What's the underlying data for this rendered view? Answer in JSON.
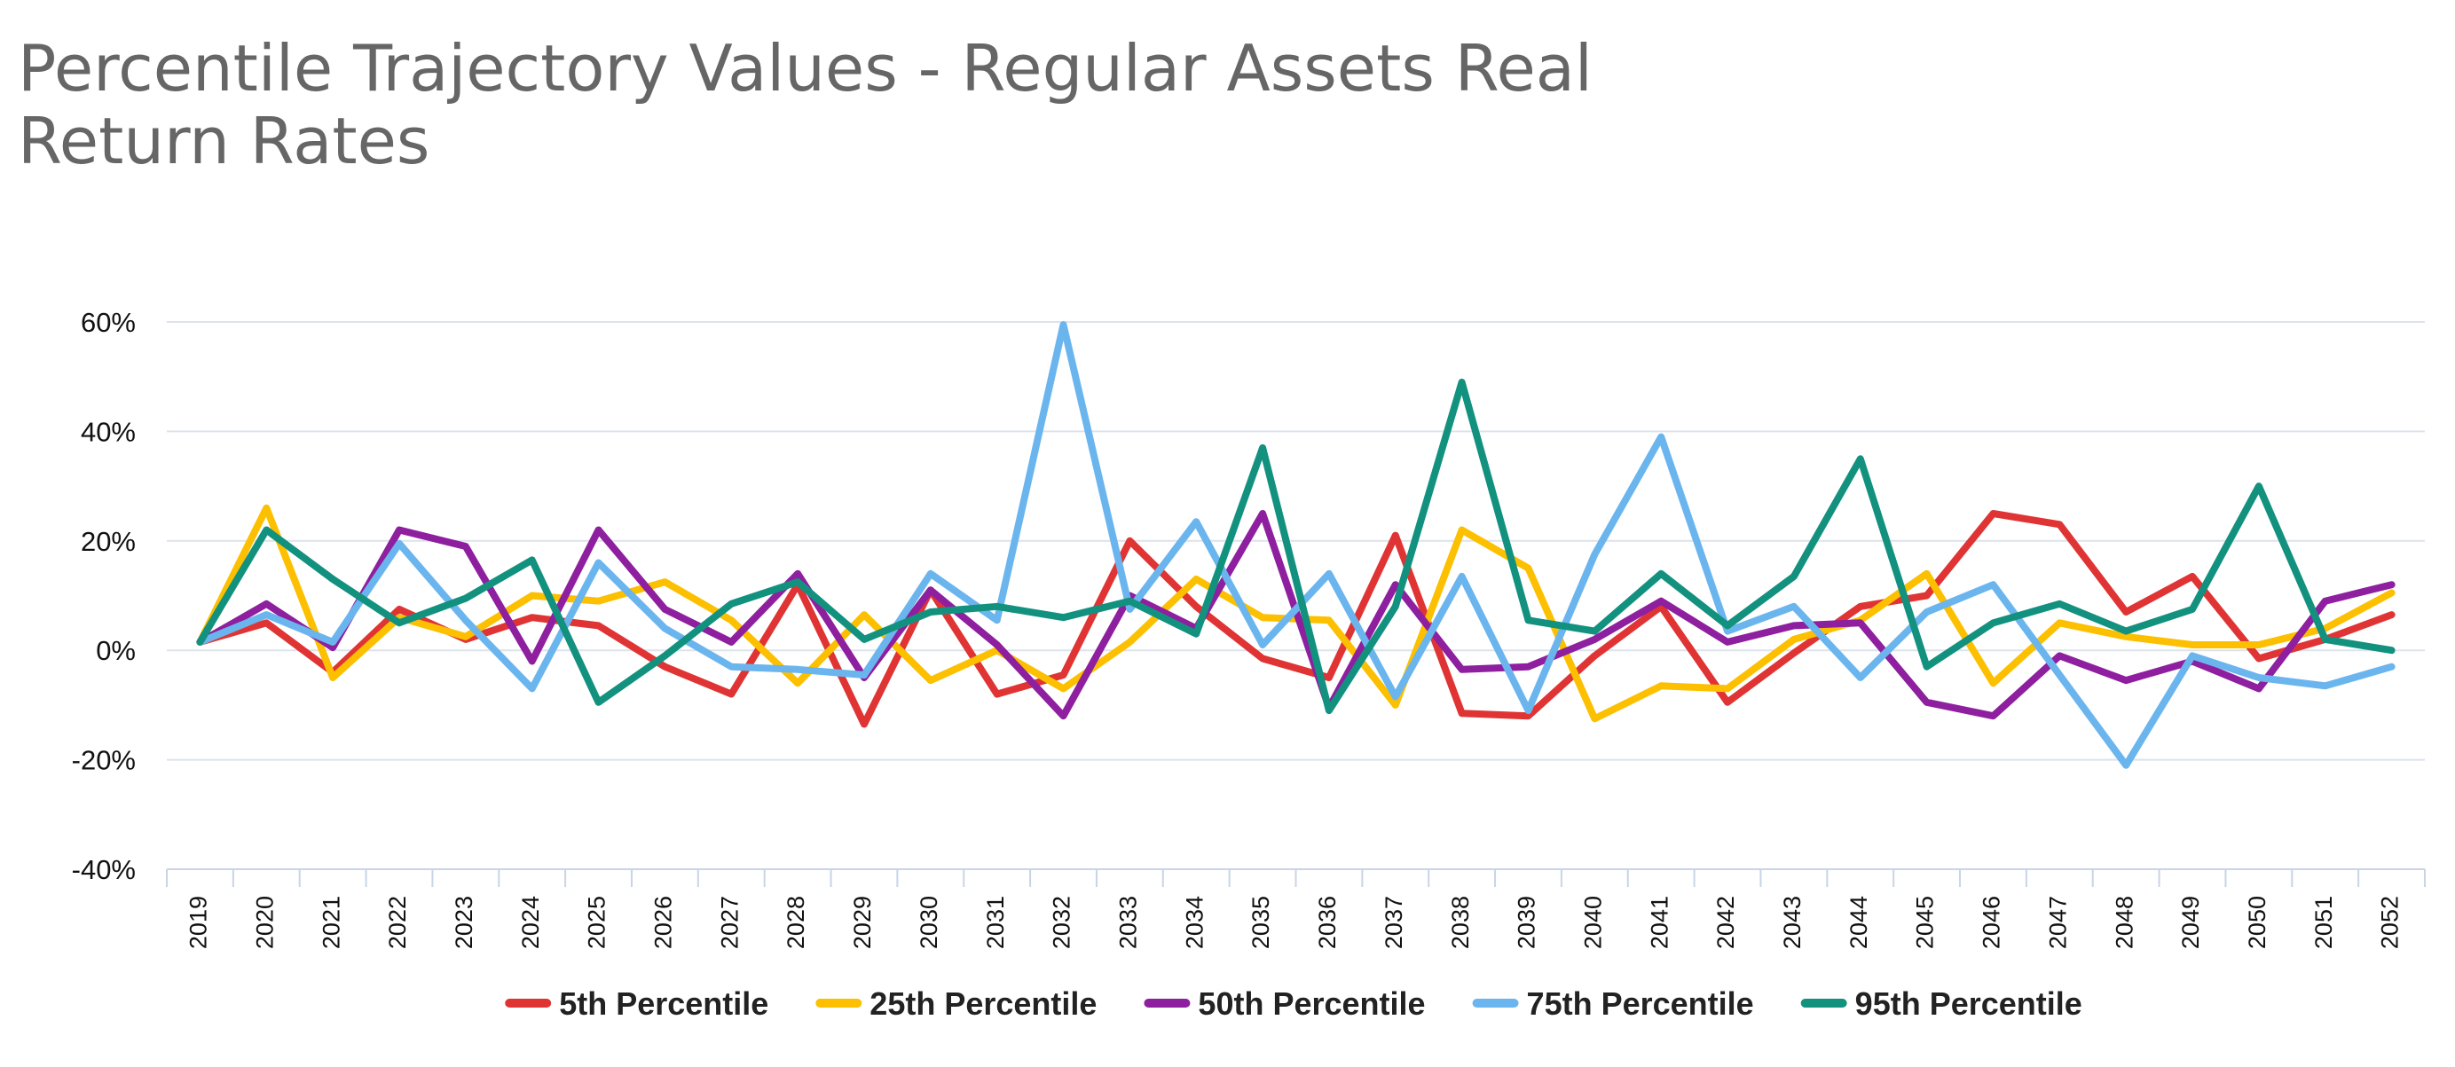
{
  "chart_data": {
    "type": "line",
    "title": "Percentile Trajectory Values - Regular Assets Real Return Rates",
    "xlabel": "",
    "ylabel": "",
    "ylim": [
      -40,
      60
    ],
    "yticks": [
      -40,
      -20,
      0,
      20,
      40,
      60
    ],
    "ytick_labels": [
      "-40%",
      "-20%",
      "0%",
      "20%",
      "40%",
      "60%"
    ],
    "grid": true,
    "legend_position": "bottom-center",
    "categories": [
      "2019",
      "2020",
      "2021",
      "2022",
      "2023",
      "2024",
      "2025",
      "2026",
      "2027",
      "2028",
      "2029",
      "2030",
      "2031",
      "2032",
      "2033",
      "2034",
      "2035",
      "2036",
      "2037",
      "2038",
      "2039",
      "2040",
      "2041",
      "2042",
      "2043",
      "2044",
      "2045",
      "2046",
      "2047",
      "2048",
      "2049",
      "2050",
      "2051",
      "2052"
    ],
    "series": [
      {
        "name": "5th Percentile",
        "color": "#e03434",
        "values": [
          1.5,
          5,
          -4,
          7.5,
          2,
          6,
          4.5,
          -3,
          -8,
          12,
          -13.5,
          11,
          -8,
          -4.5,
          20,
          8,
          -1.5,
          -5,
          21,
          -11.5,
          -12,
          -1,
          8,
          -9.5,
          -0.5,
          8,
          10,
          25,
          23,
          7,
          13.5,
          -1.5,
          2,
          6.5
        ]
      },
      {
        "name": "25th Percentile",
        "color": "#fcc000",
        "values": [
          1.5,
          26,
          -5,
          6,
          2.5,
          10,
          9,
          12.5,
          5.5,
          -6,
          6.5,
          -5.5,
          0,
          -7,
          1.5,
          13,
          6,
          5.5,
          -10,
          22,
          15,
          -12.5,
          -6.5,
          -7,
          2,
          5.5,
          14,
          -6,
          5,
          2.5,
          1,
          1,
          4,
          10.5
        ]
      },
      {
        "name": "50th Percentile",
        "color": "#8e1f9f",
        "values": [
          1.5,
          8.5,
          0.5,
          22,
          19,
          -2,
          22,
          7.5,
          1.5,
          14,
          -5,
          11,
          1,
          -12,
          10,
          4,
          25,
          -10.5,
          12,
          -3.5,
          -3,
          2,
          9,
          1.5,
          4.5,
          5,
          -9.5,
          -12,
          -1,
          -5.5,
          -2,
          -7,
          9,
          12
        ]
      },
      {
        "name": "75th Percentile",
        "color": "#6bb5ee",
        "values": [
          1.5,
          6.5,
          1.5,
          19.5,
          5.5,
          -7,
          16,
          4,
          -3,
          -3.5,
          -4.5,
          14,
          5.5,
          59.5,
          7.5,
          23.5,
          1,
          14,
          -8.5,
          13.5,
          -11,
          17.5,
          39,
          3.5,
          8,
          -5,
          7,
          12,
          -4.5,
          -21,
          -1,
          -5,
          -6.5,
          -3
        ]
      },
      {
        "name": "95th Percentile",
        "color": "#13917f",
        "values": [
          1.5,
          22,
          13,
          5,
          9.5,
          16.5,
          -9.5,
          -1,
          8.5,
          12.5,
          2,
          7,
          8,
          6,
          9,
          3,
          37,
          -11,
          8,
          49,
          5.5,
          3.5,
          14,
          4.5,
          13.5,
          35,
          -3,
          5,
          8.5,
          3.5,
          7.5,
          30,
          2,
          0
        ]
      }
    ]
  }
}
